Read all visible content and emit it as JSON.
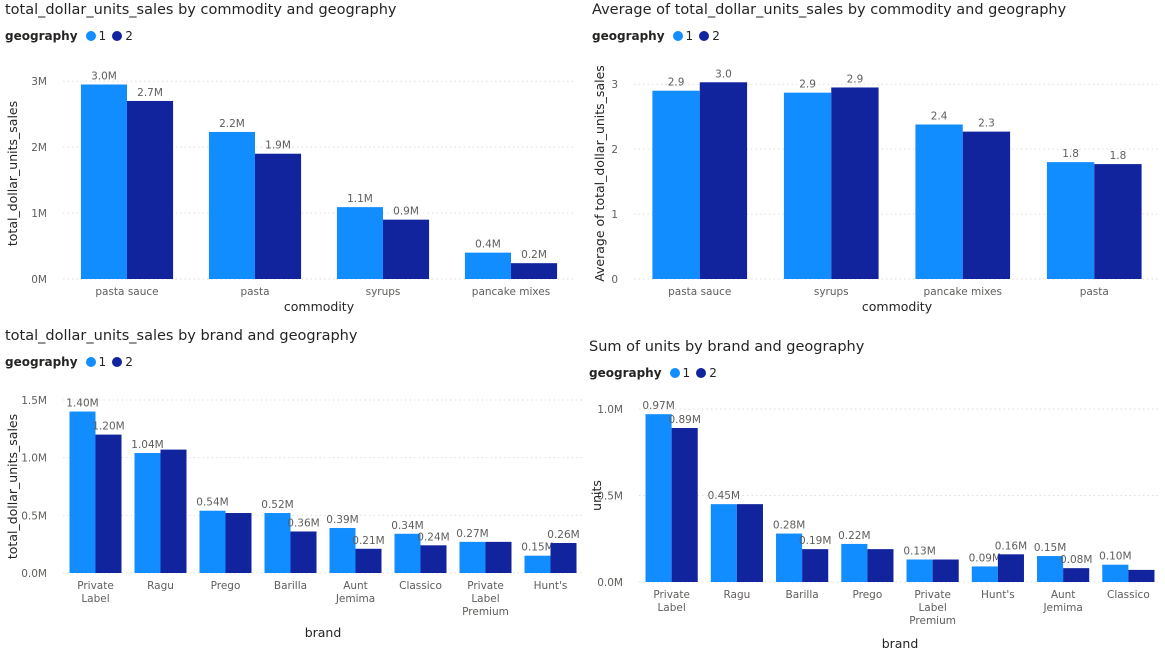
{
  "colors": {
    "series1": "#118dff",
    "series2": "#12239e"
  },
  "chart_data": [
    {
      "type": "bar",
      "title": "total_dollar_units_sales by commodity and geography",
      "legend_title": "geography",
      "legend_placement": "top-left",
      "xlabel": "commodity",
      "ylabel": "total_dollar_units_sales",
      "ylim": [
        0,
        3200000
      ],
      "yticks": [
        0,
        1000000,
        2000000,
        3000000
      ],
      "ytick_labels": [
        "0M",
        "1M",
        "2M",
        "3M"
      ],
      "categories": [
        "pasta sauce",
        "pasta",
        "syrups",
        "pancake mixes"
      ],
      "series": [
        {
          "name": "1",
          "values": [
            2950000,
            2230000,
            1090000,
            400000
          ],
          "labels": [
            "3.0M",
            "2.2M",
            "1.1M",
            "0.4M"
          ]
        },
        {
          "name": "2",
          "values": [
            2700000,
            1900000,
            900000,
            240000
          ],
          "labels": [
            "2.7M",
            "1.9M",
            "0.9M",
            "0.2M"
          ]
        }
      ]
    },
    {
      "type": "bar",
      "title": "Average of total_dollar_units_sales by commodity and geography",
      "legend_title": "geography",
      "legend_placement": "top-left",
      "xlabel": "commodity",
      "ylabel": "Average of total_dollar_units_sales",
      "ylim": [
        0,
        3.25
      ],
      "yticks": [
        0,
        1,
        2,
        3
      ],
      "ytick_labels": [
        "0",
        "1",
        "2",
        "3"
      ],
      "categories": [
        "pasta sauce",
        "syrups",
        "pancake mixes",
        "pasta"
      ],
      "series": [
        {
          "name": "1",
          "values": [
            2.9,
            2.87,
            2.38,
            1.8
          ],
          "labels": [
            "2.9",
            "2.9",
            "2.4",
            "1.8"
          ]
        },
        {
          "name": "2",
          "values": [
            3.03,
            2.95,
            2.27,
            1.77
          ],
          "labels": [
            "3.0",
            "2.9",
            "2.3",
            "1.8"
          ]
        }
      ]
    },
    {
      "type": "bar",
      "title": "total_dollar_units_sales by brand and geography",
      "legend_title": "geography",
      "legend_placement": "top-left",
      "xlabel": "brand",
      "ylabel": "total_dollar_units_sales",
      "ylim": [
        0,
        1500000
      ],
      "yticks": [
        0,
        500000,
        1000000,
        1500000
      ],
      "ytick_labels": [
        "0.0M",
        "0.5M",
        "1.0M",
        "1.5M"
      ],
      "categories": [
        [
          "Private",
          "Label"
        ],
        [
          "Ragu"
        ],
        [
          "Prego"
        ],
        [
          "Barilla"
        ],
        [
          "Aunt",
          "Jemima"
        ],
        [
          "Classico"
        ],
        [
          "Private",
          "Label",
          "Premium"
        ],
        [
          "Hunt's"
        ]
      ],
      "series": [
        {
          "name": "1",
          "values": [
            1400000,
            1040000,
            540000,
            520000,
            390000,
            340000,
            270000,
            150000
          ],
          "labels": [
            "1.40M",
            "1.04M",
            "0.54M",
            "0.52M",
            "0.39M",
            "0.34M",
            "0.27M",
            "0.15M"
          ]
        },
        {
          "name": "2",
          "values": [
            1200000,
            1070000,
            520000,
            360000,
            210000,
            240000,
            270000,
            260000
          ],
          "labels": [
            "1.20M",
            "",
            "",
            "0.36M",
            "0.21M",
            "0.24M",
            "",
            "0.26M"
          ]
        }
      ]
    },
    {
      "type": "bar",
      "title": "Sum of units by brand and geography",
      "legend_title": "geography",
      "legend_placement": "top-left",
      "xlabel": "brand",
      "ylabel": "units",
      "ylim": [
        0,
        1000000
      ],
      "yticks": [
        0,
        500000,
        1000000
      ],
      "ytick_labels": [
        "0.0M",
        "0.5M",
        "1.0M"
      ],
      "categories": [
        [
          "Private",
          "Label"
        ],
        [
          "Ragu"
        ],
        [
          "Barilla"
        ],
        [
          "Prego"
        ],
        [
          "Private",
          "Label",
          "Premium"
        ],
        [
          "Hunt's"
        ],
        [
          "Aunt",
          "Jemima"
        ],
        [
          "Classico"
        ]
      ],
      "series": [
        {
          "name": "1",
          "values": [
            970000,
            450000,
            280000,
            220000,
            130000,
            90000,
            150000,
            100000
          ],
          "labels": [
            "0.97M",
            "0.45M",
            "0.28M",
            "0.22M",
            "0.13M",
            "0.09M",
            "0.15M",
            "0.10M"
          ]
        },
        {
          "name": "2",
          "values": [
            890000,
            450000,
            190000,
            190000,
            130000,
            160000,
            80000,
            70000
          ],
          "labels": [
            "0.89M",
            "",
            "0.19M",
            "",
            "",
            "0.16M",
            "0.08M",
            ""
          ]
        }
      ]
    }
  ]
}
